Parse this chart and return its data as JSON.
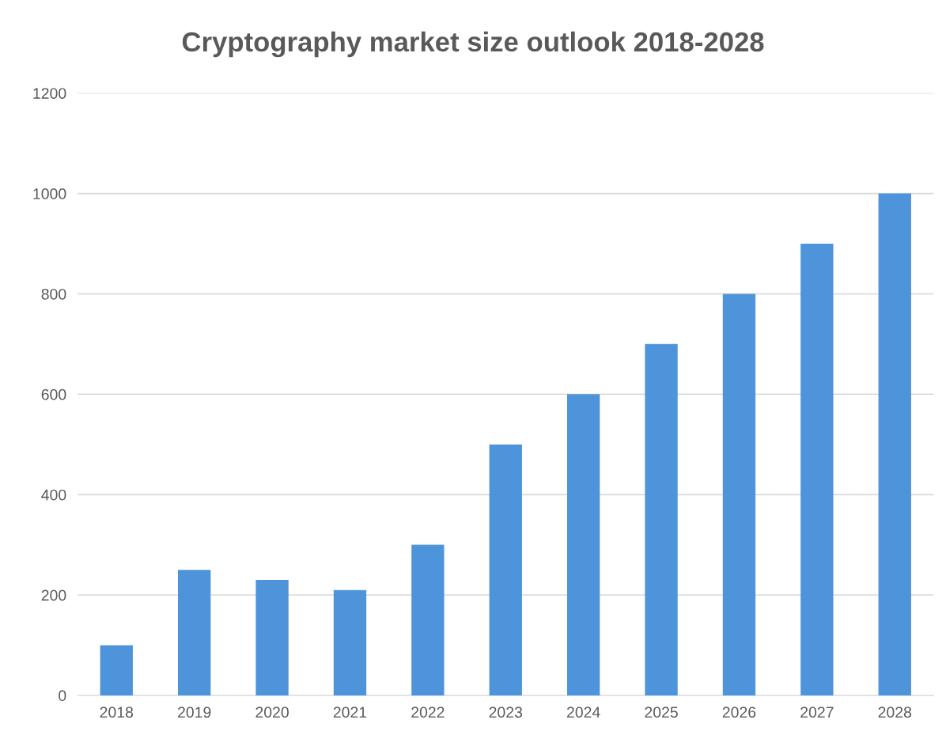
{
  "chart_data": {
    "type": "bar",
    "title": "Cryptography market size outlook 2018-2028",
    "categories": [
      "2018",
      "2019",
      "2020",
      "2021",
      "2022",
      "2023",
      "2024",
      "2025",
      "2026",
      "2027",
      "2028"
    ],
    "values": [
      100,
      250,
      230,
      210,
      300,
      500,
      600,
      700,
      800,
      900,
      1000
    ],
    "color": "#4e94da",
    "ylim": [
      0,
      1200
    ],
    "yticks": [
      0,
      200,
      400,
      600,
      800,
      1000,
      1200
    ],
    "grid": "y",
    "legend": false
  }
}
